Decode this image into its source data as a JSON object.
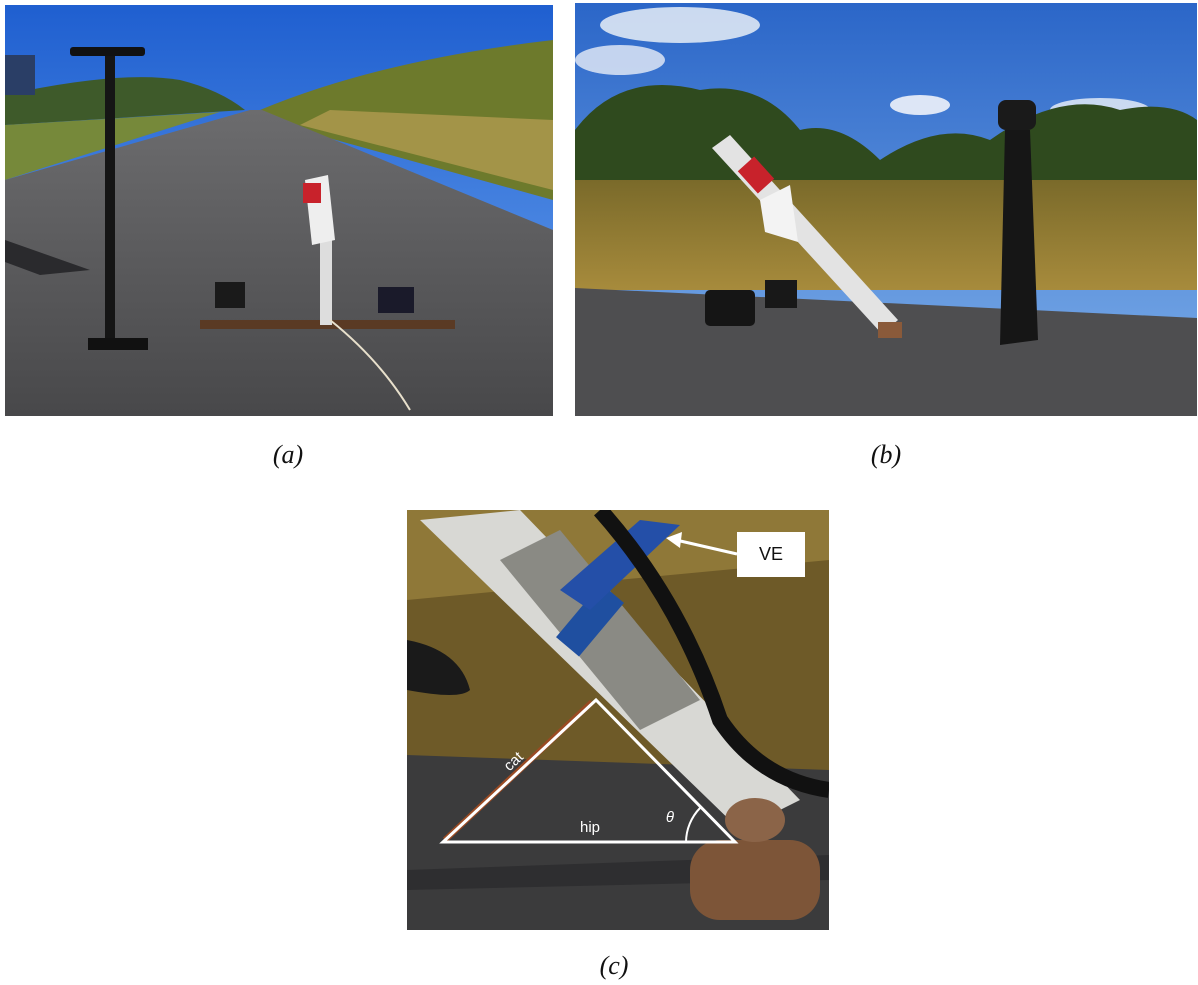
{
  "panels": [
    {
      "label": "(a)"
    },
    {
      "label": "(b)"
    },
    {
      "label": "(c)",
      "annotations": [
        "VE",
        "cat",
        "hip",
        "θ"
      ]
    }
  ]
}
